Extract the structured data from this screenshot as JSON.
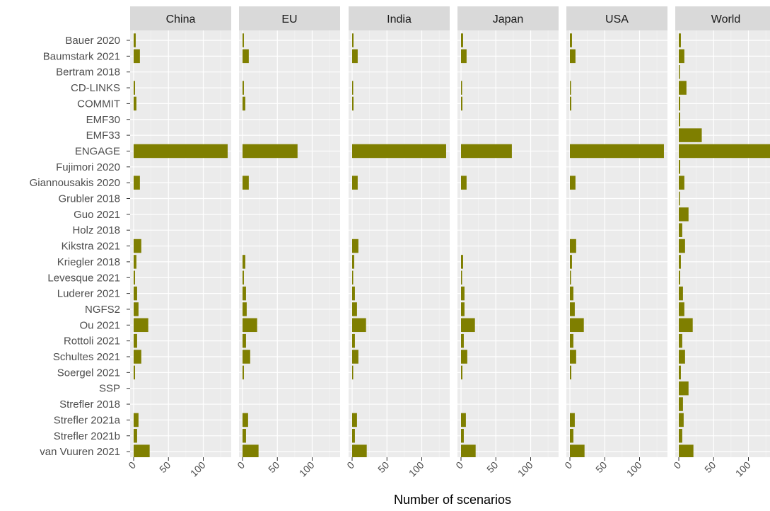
{
  "chart_data": {
    "type": "bar",
    "orientation": "horizontal",
    "faceted": true,
    "xlabel": "Number of scenarios",
    "ylabel": "",
    "xlim": [
      0,
      135
    ],
    "xticks": [
      0,
      50,
      100
    ],
    "grid": true,
    "legend": "none",
    "bar_color": "#7f7f00",
    "panel_bg": "#ebebeb",
    "strip_bg": "#d9d9d9",
    "categories": [
      "Bauer 2020",
      "Baumstark 2021",
      "Bertram 2018",
      "CD-LINKS",
      "COMMIT",
      "EMF30",
      "EMF33",
      "ENGAGE",
      "Fujimori 2020",
      "Giannousakis 2020",
      "Grubler 2018",
      "Guo 2021",
      "Holz 2018",
      "Kikstra 2021",
      "Kriegler 2018",
      "Levesque 2021",
      "Luderer 2021",
      "NGFS2",
      "Ou 2021",
      "Rottoli 2021",
      "Schultes 2021",
      "Soergel 2021",
      "SSP",
      "Strefler 2018",
      "Strefler 2021a",
      "Strefler 2021b",
      "van Vuuren 2021"
    ],
    "facets": [
      {
        "name": "China",
        "values": [
          3,
          9,
          0,
          2,
          4,
          0,
          0,
          135,
          0,
          9,
          0,
          0,
          0,
          11,
          4,
          2,
          5,
          7,
          21,
          5,
          11,
          2,
          0,
          0,
          7,
          5,
          23
        ]
      },
      {
        "name": "EU",
        "values": [
          2,
          9,
          0,
          2,
          4,
          0,
          0,
          79,
          0,
          9,
          0,
          0,
          0,
          0,
          4,
          2,
          5,
          6,
          21,
          5,
          11,
          2,
          0,
          0,
          8,
          5,
          23
        ]
      },
      {
        "name": "India",
        "values": [
          2,
          8,
          0,
          1,
          2,
          0,
          0,
          135,
          0,
          8,
          0,
          0,
          0,
          9,
          3,
          1,
          4,
          7,
          20,
          4,
          9,
          1,
          0,
          0,
          7,
          4,
          21
        ]
      },
      {
        "name": "Japan",
        "values": [
          3,
          8,
          0,
          1,
          2,
          0,
          0,
          73,
          0,
          8,
          0,
          0,
          0,
          0,
          3,
          1,
          5,
          5,
          20,
          4,
          9,
          2,
          0,
          0,
          7,
          4,
          21
        ]
      },
      {
        "name": "USA",
        "values": [
          3,
          8,
          0,
          1,
          2,
          0,
          0,
          135,
          0,
          8,
          0,
          0,
          0,
          9,
          3,
          1,
          5,
          7,
          20,
          5,
          9,
          2,
          0,
          0,
          7,
          5,
          21
        ]
      },
      {
        "name": "World",
        "values": [
          3,
          8,
          1,
          11,
          2,
          2,
          33,
          140,
          2,
          8,
          1,
          14,
          5,
          9,
          3,
          2,
          6,
          8,
          20,
          5,
          9,
          3,
          14,
          6,
          7,
          5,
          21
        ]
      }
    ]
  }
}
